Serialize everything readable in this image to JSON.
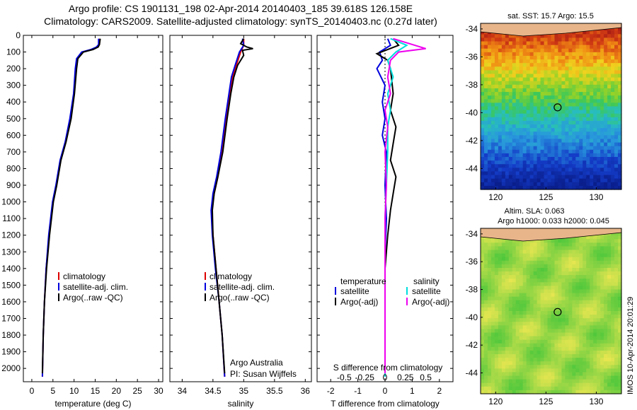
{
  "header": {
    "line1": "Argo profile: CS 1901131_198 02-Apr-2014 20140403_185 39.618S 126.158E",
    "line2": "Climatology: CARS2009. Satellite-adjusted climatology: synTS_20140403.nc (0.27d later)"
  },
  "colors": {
    "climatology": "#dd0000",
    "satellite": "#0000dd",
    "argo": "#000000",
    "sat_salinity": "#00dddd",
    "argo_salinity_adj": "#ee00ee"
  },
  "chart_data": [
    {
      "type": "line",
      "xlabel": "temperature (deg C)",
      "xlim": [
        -2,
        31
      ],
      "ylim": [
        2080,
        0
      ],
      "xticks": [
        0,
        5,
        10,
        15,
        20,
        25,
        30
      ],
      "yticks": [
        0,
        100,
        200,
        300,
        400,
        500,
        600,
        700,
        800,
        900,
        1000,
        1100,
        1200,
        1300,
        1400,
        1500,
        1600,
        1700,
        1800,
        1900,
        2000
      ],
      "legend": [
        "climatology",
        "satellite-adj. clim.",
        "Argo(..raw -QC)"
      ],
      "series": [
        {
          "name": "climatology",
          "color": "#dd0000",
          "points": [
            [
              16,
              20
            ],
            [
              16,
              55
            ],
            [
              15.5,
              70
            ],
            [
              14.2,
              85
            ],
            [
              12,
              100
            ],
            [
              10.8,
              140
            ],
            [
              10.5,
              200
            ],
            [
              10.0,
              350
            ],
            [
              9.2,
              500
            ],
            [
              8.0,
              640
            ],
            [
              6.8,
              750
            ],
            [
              5.8,
              900
            ],
            [
              5.0,
              1000
            ],
            [
              4.1,
              1200
            ],
            [
              3.4,
              1400
            ],
            [
              3.0,
              1600
            ],
            [
              2.7,
              1800
            ],
            [
              2.5,
              2050
            ]
          ]
        },
        {
          "name": "satellite-adj. clim.",
          "color": "#0000dd",
          "points": [
            [
              15.8,
              20
            ],
            [
              15.8,
              55
            ],
            [
              15.3,
              70
            ],
            [
              14.0,
              85
            ],
            [
              11.8,
              100
            ],
            [
              10.6,
              140
            ],
            [
              10.3,
              200
            ],
            [
              9.9,
              350
            ],
            [
              9.0,
              500
            ],
            [
              7.9,
              640
            ],
            [
              6.7,
              750
            ],
            [
              5.7,
              900
            ],
            [
              4.9,
              1000
            ],
            [
              4.0,
              1200
            ],
            [
              3.4,
              1400
            ],
            [
              3.0,
              1600
            ],
            [
              2.7,
              1800
            ],
            [
              2.5,
              2050
            ]
          ]
        },
        {
          "name": "Argo(..raw -QC)",
          "color": "#000000",
          "points": [
            [
              16.2,
              20
            ],
            [
              16,
              55
            ],
            [
              15.7,
              70
            ],
            [
              14.5,
              85
            ],
            [
              12.2,
              100
            ],
            [
              10.9,
              140
            ],
            [
              10.6,
              200
            ],
            [
              10.1,
              350
            ],
            [
              9.3,
              500
            ],
            [
              8.1,
              640
            ],
            [
              6.9,
              750
            ],
            [
              5.9,
              900
            ],
            [
              5.1,
              1000
            ],
            [
              4.2,
              1200
            ],
            [
              3.5,
              1400
            ],
            [
              3.0,
              1600
            ],
            [
              2.7,
              1800
            ],
            [
              2.5,
              2030
            ]
          ]
        }
      ]
    },
    {
      "type": "line",
      "xlabel": "salinity",
      "xlim": [
        33.8,
        36.1
      ],
      "ylim": [
        2080,
        0
      ],
      "xticks": [
        34,
        34.5,
        35,
        35.5,
        36
      ],
      "legend": [
        "climatology",
        "satellite-adj. clim.",
        "Argo(..raw -QC)"
      ],
      "annotation": [
        "Argo Australia",
        "PI: Susan Wijffels"
      ],
      "series": [
        {
          "name": "climatology",
          "color": "#dd0000",
          "points": [
            [
              35.0,
              20
            ],
            [
              35.0,
              60
            ],
            [
              34.95,
              100
            ],
            [
              34.88,
              180
            ],
            [
              34.82,
              250
            ],
            [
              34.78,
              350
            ],
            [
              34.72,
              500
            ],
            [
              34.65,
              700
            ],
            [
              34.58,
              850
            ],
            [
              34.52,
              950
            ],
            [
              34.48,
              1050
            ],
            [
              34.5,
              1200
            ],
            [
              34.55,
              1400
            ],
            [
              34.6,
              1600
            ],
            [
              34.65,
              1800
            ],
            [
              34.69,
              2050
            ]
          ]
        },
        {
          "name": "satellite-adj. clim.",
          "color": "#0000dd",
          "points": [
            [
              34.98,
              20
            ],
            [
              35.0,
              60
            ],
            [
              34.93,
              100
            ],
            [
              34.86,
              180
            ],
            [
              34.8,
              250
            ],
            [
              34.76,
              350
            ],
            [
              34.7,
              500
            ],
            [
              34.63,
              700
            ],
            [
              34.56,
              850
            ],
            [
              34.5,
              950
            ],
            [
              34.47,
              1050
            ],
            [
              34.49,
              1200
            ],
            [
              34.54,
              1400
            ],
            [
              34.6,
              1600
            ],
            [
              34.65,
              1800
            ],
            [
              34.69,
              2050
            ]
          ]
        },
        {
          "name": "Argo(..raw -QC)",
          "color": "#000000",
          "points": [
            [
              35.0,
              20
            ],
            [
              34.95,
              50
            ],
            [
              35.05,
              70
            ],
            [
              35.15,
              80
            ],
            [
              34.98,
              90
            ],
            [
              35.0,
              120
            ],
            [
              34.9,
              180
            ],
            [
              34.84,
              250
            ],
            [
              34.79,
              350
            ],
            [
              34.73,
              500
            ],
            [
              34.66,
              700
            ],
            [
              34.58,
              850
            ],
            [
              34.52,
              950
            ],
            [
              34.49,
              1050
            ],
            [
              34.5,
              1200
            ],
            [
              34.55,
              1400
            ],
            [
              34.6,
              1600
            ],
            [
              34.65,
              1800
            ],
            [
              34.69,
              2030
            ]
          ]
        }
      ]
    },
    {
      "type": "line",
      "xlabel": "T difference from climatology",
      "xlabel_top": "S difference from climatology",
      "xlim": [
        -2.5,
        2.5
      ],
      "ylim": [
        2080,
        0
      ],
      "xticks": [
        -2,
        -1,
        0,
        1,
        2
      ],
      "xticks_s": [
        "-0.5",
        "-0.25",
        "0",
        "0.25",
        "0.5"
      ],
      "legend_t_title": "temperature",
      "legend_s_title": "salinity",
      "legend": [
        "satellite",
        "Argo(-adj)",
        "satellite",
        "Argo(-adj)"
      ],
      "series": [
        {
          "name": "satellite",
          "color": "#0000dd",
          "points": [
            [
              0.1,
              20
            ],
            [
              0.2,
              60
            ],
            [
              -0.2,
              100
            ],
            [
              -0.1,
              150
            ],
            [
              -0.3,
              200
            ],
            [
              0,
              300
            ],
            [
              -0.1,
              400
            ],
            [
              0,
              500
            ],
            [
              -0.1,
              600
            ],
            [
              0.05,
              700
            ],
            [
              0,
              900
            ],
            [
              0.05,
              1100
            ],
            [
              0,
              1300
            ],
            [
              0,
              1500
            ],
            [
              0,
              2050
            ]
          ]
        },
        {
          "name": "Argo(-adj)",
          "color": "#000000",
          "points": [
            [
              0.3,
              20
            ],
            [
              0.5,
              60
            ],
            [
              -0.3,
              110
            ],
            [
              0.1,
              150
            ],
            [
              0.2,
              200
            ],
            [
              0.3,
              350
            ],
            [
              0.2,
              450
            ],
            [
              0.4,
              550
            ],
            [
              0.3,
              650
            ],
            [
              0.2,
              750
            ],
            [
              0.4,
              850
            ],
            [
              0.3,
              950
            ],
            [
              0.2,
              1050
            ],
            [
              0.1,
              1200
            ],
            [
              0,
              1400
            ],
            [
              0,
              2030
            ]
          ]
        },
        {
          "name": "satellite",
          "color": "#00dddd",
          "points": [
            [
              0.2,
              20
            ],
            [
              0.8,
              60
            ],
            [
              0.4,
              100
            ],
            [
              0.1,
              150
            ],
            [
              0.3,
              250
            ],
            [
              0.1,
              350
            ],
            [
              0.2,
              450
            ],
            [
              0.1,
              550
            ],
            [
              0.1,
              700
            ],
            [
              0.05,
              900
            ],
            [
              0,
              1100
            ],
            [
              0,
              1300
            ],
            [
              0,
              2050
            ]
          ]
        },
        {
          "name": "Argo(-adj)",
          "color": "#ee00ee",
          "points": [
            [
              0.3,
              20
            ],
            [
              1.5,
              80
            ],
            [
              0.5,
              100
            ],
            [
              0.2,
              150
            ],
            [
              0.1,
              250
            ],
            [
              0.2,
              350
            ],
            [
              0,
              450
            ],
            [
              0.1,
              550
            ],
            [
              0,
              700
            ],
            [
              0.05,
              900
            ],
            [
              0,
              1100
            ],
            [
              0,
              1300
            ],
            [
              0,
              2030
            ]
          ]
        }
      ]
    },
    {
      "type": "heatmap",
      "title": "sat. SST: 15.7 Argo: 15.5",
      "xlim": [
        118.5,
        132.5
      ],
      "ylim": [
        -45.5,
        -33.6
      ],
      "xticks": [
        120,
        125,
        130
      ],
      "yticks": [
        -34,
        -36,
        -38,
        -40,
        -42,
        -44
      ],
      "marker": [
        126.158,
        -39.618
      ]
    },
    {
      "type": "heatmap",
      "title_line1": "Altim. SLA: 0.063",
      "title_line2": "Argo h1000: 0.033 h2000: 0.045",
      "xlim": [
        118.5,
        132.5
      ],
      "ylim": [
        -45.5,
        -33.6
      ],
      "xticks": [
        120,
        125,
        130
      ],
      "yticks": [
        -34,
        -36,
        -38,
        -40,
        -42,
        -44
      ],
      "marker": [
        126.158,
        -39.618
      ]
    }
  ],
  "side_label": "IMOS 10-Apr-2014 20:01:29"
}
